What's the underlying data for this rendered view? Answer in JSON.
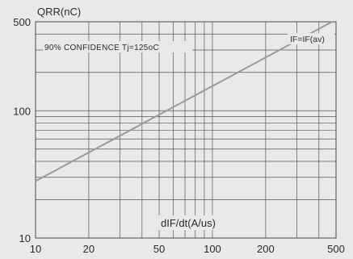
{
  "chart_data": {
    "type": "line",
    "ylabel": "QRR(nC)",
    "xlabel": "dIF/dt(A/us)",
    "annotations": [
      "90% CONFIDENCE Tj=125oC",
      "IF=IF(av)"
    ],
    "x_scale": "log",
    "y_scale": "log",
    "xlim": [
      10,
      500
    ],
    "ylim": [
      10,
      500
    ],
    "grid": true,
    "x_ticks": [
      10,
      20,
      50,
      100,
      200,
      500
    ],
    "y_ticks": [
      10,
      100,
      500
    ],
    "series": [
      {
        "x": [
          10,
          500
        ],
        "y": [
          28,
          520
        ]
      }
    ]
  }
}
